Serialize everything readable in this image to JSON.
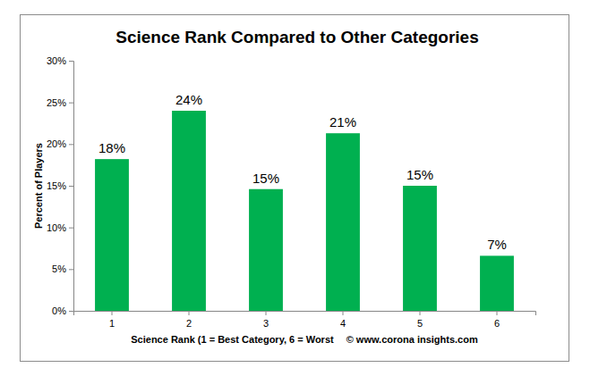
{
  "chart_data": {
    "type": "bar",
    "title": "Science Rank Compared to Other Categories",
    "x_label": "Science Rank (1 = Best Category, 6 = Worst",
    "y_label": "Percent of Players",
    "annotations": [
      "© www.corona insights.com"
    ],
    "categories": [
      "1",
      "2",
      "3",
      "4",
      "5",
      "6"
    ],
    "values": [
      18.2,
      24.0,
      14.6,
      21.3,
      15.0,
      6.6
    ],
    "value_labels": [
      "18%",
      "24%",
      "15%",
      "21%",
      "15%",
      "7%"
    ],
    "data_labels": true,
    "color": "#00b050",
    "ylim": [
      0,
      30
    ],
    "yticks": [
      {
        "value": 0,
        "label": "0%"
      },
      {
        "value": 5,
        "label": "5%"
      },
      {
        "value": 10,
        "label": "10%"
      },
      {
        "value": 15,
        "label": "15%"
      },
      {
        "value": 20,
        "label": "20%"
      },
      {
        "value": 25,
        "label": "25%"
      },
      {
        "value": 30,
        "label": "30%"
      }
    ],
    "grid": false
  }
}
